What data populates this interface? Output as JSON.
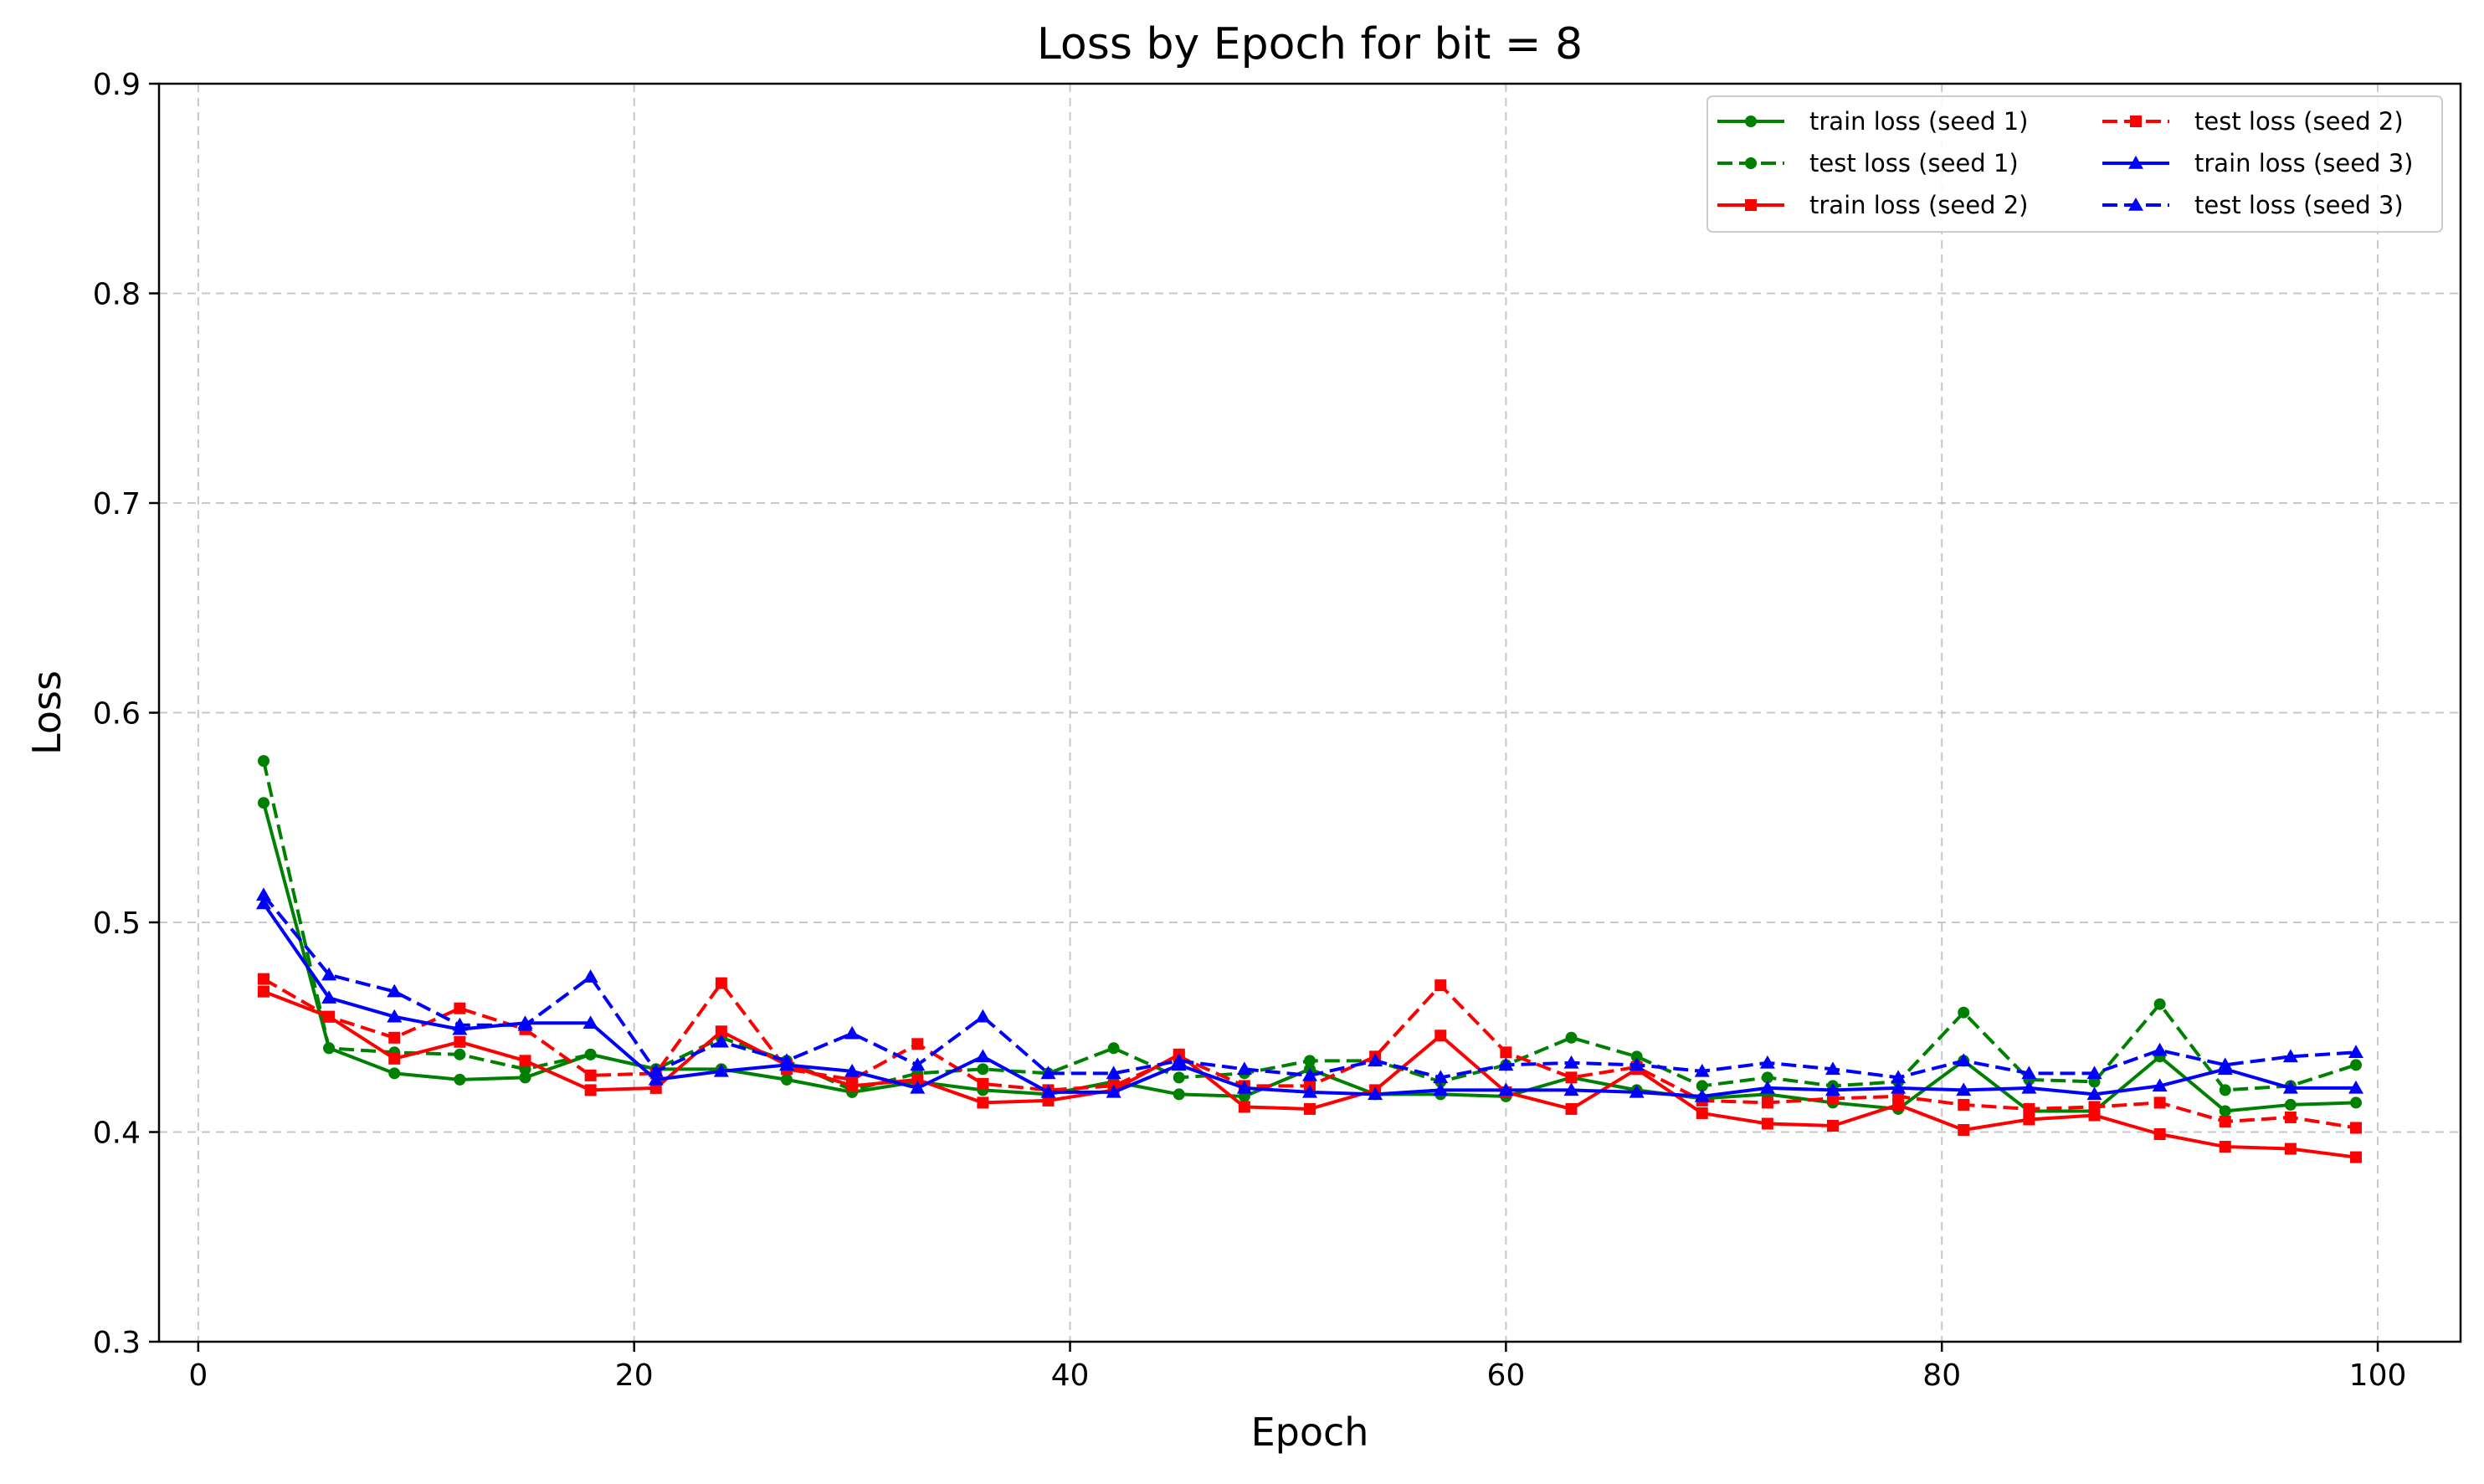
{
  "chart_data": {
    "type": "line",
    "title": "Loss by Epoch for bit = 8",
    "xlabel": "Epoch",
    "ylabel": "Loss",
    "xlim": [
      -1.8,
      103.8
    ],
    "ylim": [
      0.3,
      0.9
    ],
    "xticks": [
      "0",
      "20",
      "40",
      "60",
      "80",
      "100"
    ],
    "yticks": [
      "0.3",
      "0.4",
      "0.5",
      "0.6",
      "0.7",
      "0.8",
      "0.9"
    ],
    "grid": true,
    "legend": "top-right",
    "x": [
      3,
      6,
      9,
      12,
      15,
      18,
      21,
      24,
      27,
      30,
      33,
      36,
      39,
      42,
      45,
      48,
      51,
      54,
      57,
      60,
      63,
      66,
      69,
      72,
      75,
      78,
      81,
      84,
      87,
      90,
      93,
      96,
      99
    ],
    "series": [
      {
        "name": "train loss (seed 1)",
        "color": "#008000",
        "dash": "solid",
        "marker": "circle",
        "values": [
          0.557,
          0.44,
          0.428,
          0.425,
          0.426,
          0.437,
          0.43,
          0.43,
          0.425,
          0.419,
          0.424,
          0.42,
          0.418,
          0.424,
          0.418,
          0.417,
          0.43,
          0.418,
          0.418,
          0.417,
          0.426,
          0.42,
          0.416,
          0.418,
          0.414,
          0.411,
          0.434,
          0.41,
          0.41,
          0.436,
          0.41,
          0.413,
          0.414
        ]
      },
      {
        "name": "test loss (seed 1)",
        "color": "#008000",
        "dash": "dashed",
        "marker": "circle",
        "values": [
          0.577,
          0.44,
          0.438,
          0.437,
          0.43,
          0.437,
          0.43,
          0.445,
          0.434,
          0.42,
          0.428,
          0.43,
          0.428,
          0.44,
          0.426,
          0.428,
          0.434,
          0.434,
          0.424,
          0.432,
          0.445,
          0.436,
          0.422,
          0.426,
          0.422,
          0.424,
          0.457,
          0.425,
          0.424,
          0.461,
          0.42,
          0.422,
          0.432
        ]
      },
      {
        "name": "train loss (seed 2)",
        "color": "#ff0000",
        "dash": "solid",
        "marker": "square",
        "values": [
          0.467,
          0.455,
          0.435,
          0.443,
          0.434,
          0.42,
          0.421,
          0.448,
          0.432,
          0.422,
          0.425,
          0.414,
          0.415,
          0.42,
          0.437,
          0.412,
          0.411,
          0.42,
          0.446,
          0.419,
          0.411,
          0.43,
          0.409,
          0.404,
          0.403,
          0.413,
          0.401,
          0.406,
          0.408,
          0.399,
          0.393,
          0.392,
          0.388
        ]
      },
      {
        "name": "test loss (seed 2)",
        "color": "#ff0000",
        "dash": "dashed",
        "marker": "square",
        "values": [
          0.473,
          0.455,
          0.445,
          0.459,
          0.449,
          0.427,
          0.428,
          0.471,
          0.43,
          0.425,
          0.442,
          0.423,
          0.42,
          0.422,
          0.436,
          0.422,
          0.422,
          0.436,
          0.47,
          0.438,
          0.426,
          0.431,
          0.415,
          0.414,
          0.416,
          0.417,
          0.413,
          0.411,
          0.412,
          0.414,
          0.405,
          0.407,
          0.402
        ]
      },
      {
        "name": "train loss (seed 3)",
        "color": "#0000ff",
        "dash": "solid",
        "marker": "triangle",
        "values": [
          0.509,
          0.464,
          0.455,
          0.449,
          0.452,
          0.452,
          0.425,
          0.429,
          0.432,
          0.429,
          0.421,
          0.436,
          0.419,
          0.419,
          0.432,
          0.421,
          0.419,
          0.418,
          0.42,
          0.42,
          0.42,
          0.419,
          0.417,
          0.421,
          0.42,
          0.421,
          0.42,
          0.421,
          0.418,
          0.422,
          0.43,
          0.421,
          0.421
        ]
      },
      {
        "name": "test loss (seed 3)",
        "color": "#0000ff",
        "dash": "dashed",
        "marker": "triangle",
        "values": [
          0.513,
          0.475,
          0.467,
          0.451,
          0.451,
          0.474,
          0.429,
          0.443,
          0.434,
          0.447,
          0.432,
          0.455,
          0.428,
          0.428,
          0.434,
          0.43,
          0.427,
          0.434,
          0.426,
          0.432,
          0.433,
          0.432,
          0.429,
          0.433,
          0.43,
          0.426,
          0.434,
          0.428,
          0.428,
          0.439,
          0.432,
          0.436,
          0.438
        ]
      }
    ]
  }
}
